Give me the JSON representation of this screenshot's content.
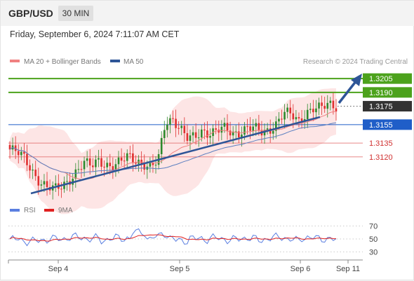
{
  "header": {
    "symbol": "GBP/USD",
    "timeframe": "30 MIN",
    "datetime": "Friday, September 6, 2024 7:11:07 AM CET"
  },
  "legend": {
    "ma20_bb": "MA 20 + Bollinger Bands",
    "ma50": "MA 50",
    "source": "Research © 2024 Trading Central",
    "rsi": "RSI",
    "rsi_ma": "9MA"
  },
  "colors": {
    "candle_up": "#2d8a2d",
    "candle_down": "#e03030",
    "bollinger_fill": "#fde0e0",
    "ma20": "#f08080",
    "ma50": "#5b7fc0",
    "trend": "#2e5597",
    "resistance": "#4ca21c",
    "pivot": "#1f5ec8",
    "support": "#e06060",
    "last_price": "#333333",
    "rsi": "#5b7fe0",
    "rsi_ma": "#e02020"
  },
  "chart_data": [
    {
      "type": "candlestick",
      "y_range": [
        1.3075,
        1.3215
      ],
      "x_labels": [
        "Sep 4",
        "Sep 5",
        "Sep 6",
        "Sep 11"
      ],
      "candle_count": 115,
      "key_prices": [
        {
          "value": 1.3205,
          "label": "1.3205",
          "kind": "resistance"
        },
        {
          "value": 1.319,
          "label": "1.3190",
          "kind": "resistance"
        },
        {
          "value": 1.3175,
          "label": "1.3175",
          "kind": "last_price"
        },
        {
          "value": 1.3155,
          "label": "1.3155",
          "kind": "pivot"
        },
        {
          "value": 1.3135,
          "label": "1.3135",
          "kind": "support"
        },
        {
          "value": 1.312,
          "label": "1.3120",
          "kind": "support"
        }
      ],
      "close_path": [
        1.3128,
        1.3124,
        1.3118,
        1.3106,
        1.3094,
        1.3086,
        1.3084,
        1.3089,
        1.3096,
        1.3104,
        1.3112,
        1.311,
        1.3118,
        1.3112,
        1.3108,
        1.3114,
        1.3122,
        1.3118,
        1.3112,
        1.3106,
        1.3116,
        1.316,
        1.3162,
        1.315,
        1.3138,
        1.3142,
        1.315,
        1.3146,
        1.3148,
        1.315,
        1.3146,
        1.3148,
        1.3152,
        1.315,
        1.3146,
        1.315,
        1.3158,
        1.3168,
        1.3164,
        1.3158,
        1.317,
        1.3174,
        1.3172,
        1.3176,
        1.3175
      ]
    },
    {
      "type": "line",
      "title": "RSI",
      "y_ticks": [
        70,
        50,
        30
      ],
      "series": [
        {
          "name": "RSI"
        },
        {
          "name": "9MA"
        }
      ]
    }
  ]
}
